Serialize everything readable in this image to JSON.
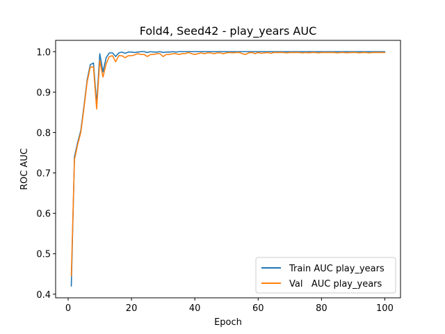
{
  "chart_data": {
    "type": "line",
    "title": "Fold4, Seed42 - play_years AUC",
    "xlabel": "Epoch",
    "ylabel": "ROC AUC",
    "xlim": [
      -3.95,
      104.95
    ],
    "ylim": [
      0.391,
      1.028
    ],
    "xticks": [
      0,
      20,
      40,
      60,
      80,
      100
    ],
    "yticks": [
      0.4,
      0.5,
      0.6,
      0.7,
      0.8,
      0.9,
      1.0
    ],
    "ytick_labels": [
      "0.4",
      "0.5",
      "0.6",
      "0.7",
      "0.8",
      "0.9",
      "1.0"
    ],
    "grid": false,
    "legend_position": "lower-right",
    "colors": {
      "train": "#1f77b4",
      "val": "#ff7f0e"
    },
    "series": [
      {
        "name": "Train AUC play_years",
        "color": "#1f77b4",
        "x": [
          1,
          2,
          3,
          4,
          5,
          6,
          7,
          8,
          9,
          10,
          11,
          12,
          13,
          14,
          15,
          16,
          17,
          18,
          19,
          20,
          21,
          22,
          23,
          24,
          25,
          26,
          27,
          28,
          29,
          30,
          31,
          32,
          33,
          34,
          35,
          36,
          37,
          38,
          39,
          40,
          41,
          42,
          43,
          44,
          45,
          46,
          47,
          48,
          49,
          50,
          51,
          52,
          53,
          54,
          55,
          56,
          57,
          58,
          59,
          60,
          61,
          62,
          63,
          64,
          65,
          66,
          67,
          68,
          69,
          70,
          71,
          72,
          73,
          74,
          75,
          76,
          77,
          78,
          79,
          80,
          81,
          82,
          83,
          84,
          85,
          86,
          87,
          88,
          89,
          90,
          91,
          92,
          93,
          94,
          95,
          96,
          97,
          98,
          99,
          100
        ],
        "values": [
          0.42,
          0.74,
          0.775,
          0.805,
          0.865,
          0.93,
          0.968,
          0.972,
          0.87,
          0.995,
          0.95,
          0.985,
          0.997,
          0.997,
          0.988,
          0.997,
          0.999,
          0.996,
          0.999,
          0.999,
          0.998,
          0.999,
          1.0,
          1.0,
          0.998,
          1.0,
          0.999,
          0.999,
          1.0,
          0.998,
          0.999,
          0.999,
          1.0,
          0.999,
          1.0,
          1.0,
          1.0,
          1.0,
          1.0,
          1.0,
          1.0,
          1.0,
          1.0,
          1.0,
          1.0,
          1.0,
          1.0,
          1.0,
          1.0,
          1.0,
          1.0,
          1.0,
          1.0,
          1.0,
          1.0,
          1.0,
          1.0,
          1.0,
          1.0,
          1.0,
          1.0,
          1.0,
          1.0,
          1.0,
          1.0,
          1.0,
          1.0,
          1.0,
          1.0,
          1.0,
          1.0,
          1.0,
          1.0,
          1.0,
          1.0,
          1.0,
          1.0,
          1.0,
          1.0,
          1.0,
          1.0,
          1.0,
          1.0,
          1.0,
          1.0,
          1.0,
          1.0,
          1.0,
          1.0,
          1.0,
          1.0,
          1.0,
          1.0,
          1.0,
          1.0,
          1.0,
          1.0,
          1.0,
          1.0,
          1.0
        ]
      },
      {
        "name": "Val   AUC play_years",
        "color": "#ff7f0e",
        "x": [
          1,
          2,
          3,
          4,
          5,
          6,
          7,
          8,
          9,
          10,
          11,
          12,
          13,
          14,
          15,
          16,
          17,
          18,
          19,
          20,
          21,
          22,
          23,
          24,
          25,
          26,
          27,
          28,
          29,
          30,
          31,
          32,
          33,
          34,
          35,
          36,
          37,
          38,
          39,
          40,
          41,
          42,
          43,
          44,
          45,
          46,
          47,
          48,
          49,
          50,
          51,
          52,
          53,
          54,
          55,
          56,
          57,
          58,
          59,
          60,
          61,
          62,
          63,
          64,
          65,
          66,
          67,
          68,
          69,
          70,
          71,
          72,
          73,
          74,
          75,
          76,
          77,
          78,
          79,
          80,
          81,
          82,
          83,
          84,
          85,
          86,
          87,
          88,
          89,
          90,
          91,
          92,
          93,
          94,
          95,
          96,
          97,
          98,
          99,
          100
        ],
        "values": [
          0.445,
          0.733,
          0.77,
          0.8,
          0.86,
          0.925,
          0.962,
          0.962,
          0.858,
          0.978,
          0.937,
          0.97,
          0.988,
          0.99,
          0.975,
          0.99,
          0.99,
          0.985,
          0.99,
          0.99,
          0.992,
          0.995,
          0.993,
          0.993,
          0.988,
          0.993,
          0.993,
          0.995,
          0.995,
          0.988,
          0.993,
          0.993,
          0.995,
          0.995,
          0.993,
          0.995,
          0.995,
          0.998,
          0.995,
          0.993,
          0.995,
          0.997,
          0.995,
          0.997,
          0.997,
          0.995,
          0.997,
          0.997,
          0.995,
          0.997,
          0.998,
          0.997,
          0.998,
          0.998,
          0.995,
          0.993,
          0.997,
          0.998,
          0.995,
          0.998,
          0.996,
          0.997,
          0.998,
          0.996,
          0.998,
          0.998,
          0.998,
          0.998,
          0.997,
          0.998,
          0.998,
          0.998,
          0.998,
          0.997,
          0.998,
          0.997,
          0.998,
          0.998,
          0.997,
          0.998,
          0.998,
          0.998,
          0.998,
          0.998,
          0.997,
          0.998,
          0.998,
          0.997,
          0.998,
          0.998,
          0.998,
          0.997,
          0.998,
          0.998,
          0.997,
          0.998,
          0.998,
          0.998,
          0.998,
          0.998
        ]
      }
    ]
  }
}
